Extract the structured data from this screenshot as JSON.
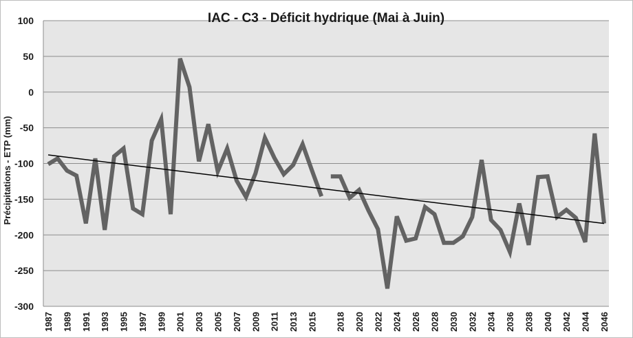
{
  "chart_data": {
    "type": "line",
    "title": "IAC - C3 - Déficit hydrique (Mai à Juin)",
    "ylabel": "Précipitations - ETP (mm)",
    "xlabel": "",
    "ylim": [
      -300,
      100
    ],
    "yticks": [
      100,
      50,
      0,
      -50,
      -100,
      -150,
      -200,
      -250,
      -300
    ],
    "xlim": [
      1987,
      2046
    ],
    "xticks": [
      1987,
      1989,
      1991,
      1993,
      1995,
      1997,
      1999,
      2001,
      2003,
      2005,
      2007,
      2009,
      2011,
      2013,
      2015,
      2018,
      2020,
      2022,
      2024,
      2026,
      2028,
      2030,
      2032,
      2034,
      2036,
      2038,
      2040,
      2042,
      2044,
      2046
    ],
    "grid": true,
    "legend": "none",
    "colors": {
      "series": "#636363",
      "trend": "#000000",
      "plot_bg": "#e6e6e6",
      "grid": "#8c8c8c"
    },
    "series": [
      {
        "x": [
          1987,
          1988,
          1989,
          1990,
          1991,
          1992,
          1993,
          1994,
          1995,
          1996,
          1997,
          1998,
          1999,
          2000,
          2001,
          2002,
          2003,
          2004,
          2005,
          2006,
          2007,
          2008,
          2009,
          2010,
          2011,
          2012,
          2013,
          2014,
          2015,
          2016
        ],
        "values": [
          -101,
          -93,
          -110,
          -117,
          -184,
          -93,
          -193,
          -90,
          -79,
          -163,
          -171,
          -68,
          -38,
          -171,
          47,
          7,
          -97,
          -45,
          -111,
          -79,
          -124,
          -147,
          -114,
          -64,
          -92,
          -115,
          -102,
          -73,
          -110,
          -146
        ]
      },
      {
        "x": [
          2017,
          2018,
          2019,
          2020,
          2021,
          2022,
          2023,
          2024,
          2025,
          2026,
          2027,
          2028,
          2029,
          2030,
          2031,
          2032,
          2033,
          2034,
          2035,
          2036,
          2037,
          2038,
          2039,
          2040,
          2041,
          2042,
          2043,
          2044,
          2045,
          2046
        ],
        "values": [
          -118,
          -118,
          -148,
          -137,
          -166,
          -192,
          -275,
          -174,
          -208,
          -205,
          -161,
          -171,
          -211,
          -211,
          -202,
          -175,
          -95,
          -179,
          -193,
          -224,
          -156,
          -214,
          -119,
          -118,
          -175,
          -165,
          -176,
          -210,
          -58,
          -184
        ]
      }
    ],
    "trendline": {
      "x": [
        1987,
        2046
      ],
      "values": [
        -88,
        -184
      ]
    }
  }
}
